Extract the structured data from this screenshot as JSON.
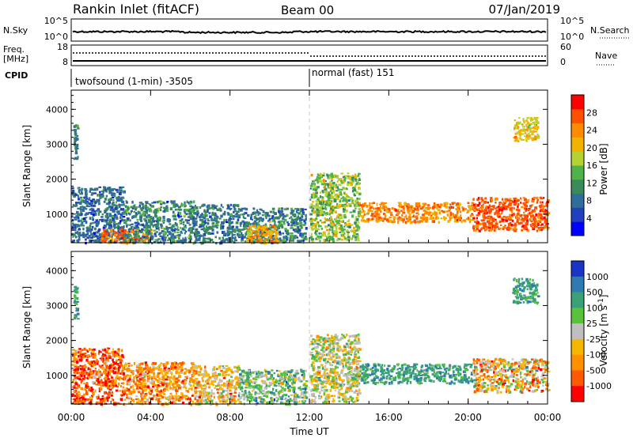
{
  "header": {
    "station": "Rankin Inlet (fitACF)",
    "beam": "Beam 00",
    "date": "07/Jan/2019"
  },
  "noise_panel": {
    "left_label": "N.Sky",
    "right_label": "N.Search",
    "left_ticks": [
      "10^5",
      "10^0"
    ],
    "right_ticks": [
      "10^5",
      "10^0"
    ]
  },
  "freq_panel": {
    "left_label_1": "Freq.",
    "left_label_2": "[MHz]",
    "left_ticks": [
      "18",
      "8"
    ],
    "right_label": "Nave",
    "right_ticks": [
      "60",
      "0"
    ]
  },
  "cpid_panel": {
    "label": "CPID",
    "mode_1": "twofsound (1-min) -3505",
    "mode_2": "normal (fast) 151",
    "switch_hour": 12
  },
  "colors": {
    "power": [
      "#0000ff",
      "#2040c0",
      "#2f6e9a",
      "#3a8a5a",
      "#4fb24a",
      "#b4d232",
      "#f0b400",
      "#ff8c00",
      "#ff5000",
      "#ff0000"
    ],
    "velocity": [
      "#1a34c8",
      "#2f7ab0",
      "#3aa078",
      "#59c23a",
      "#bfbfbf",
      "#f5b800",
      "#ff9000",
      "#ff5a00",
      "#ff0000"
    ]
  },
  "chart_data": [
    {
      "type": "heatmap",
      "name_of_quantity": "Power",
      "ylabel": "Slant Range [km]",
      "yticks": [
        1000,
        2000,
        3000,
        4000
      ],
      "ylim": [
        180,
        4550
      ],
      "xlim": [
        0,
        24
      ],
      "colorbar_label": "Power [dB]",
      "colorbar_ticks": [
        "4",
        "8",
        "12",
        "16",
        "20",
        "24",
        "28"
      ],
      "colorbar_range": [
        0,
        32
      ],
      "regions": [
        {
          "x": [
            0.0,
            2.6
          ],
          "y": [
            200,
            1800
          ],
          "mean": 8,
          "sd": 4
        },
        {
          "x": [
            1.5,
            4.0
          ],
          "y": [
            200,
            600
          ],
          "mean": 26,
          "sd": 4
        },
        {
          "x": [
            2.6,
            6.2
          ],
          "y": [
            200,
            1400
          ],
          "mean": 10,
          "sd": 5
        },
        {
          "x": [
            6.2,
            8.4
          ],
          "y": [
            200,
            1300
          ],
          "mean": 9,
          "sd": 4
        },
        {
          "x": [
            8.4,
            11.8
          ],
          "y": [
            200,
            1200
          ],
          "mean": 10,
          "sd": 5
        },
        {
          "x": [
            8.8,
            10.5
          ],
          "y": [
            200,
            700
          ],
          "mean": 22,
          "sd": 5
        },
        {
          "x": [
            12.0,
            14.5
          ],
          "y": [
            250,
            2200
          ],
          "mean": 16,
          "sd": 6
        },
        {
          "x": [
            14.5,
            20.2
          ],
          "y": [
            800,
            1350
          ],
          "mean": 24,
          "sd": 4
        },
        {
          "x": [
            20.2,
            24.0
          ],
          "y": [
            550,
            1500
          ],
          "mean": 27,
          "sd": 3
        },
        {
          "x": [
            22.2,
            23.5
          ],
          "y": [
            3100,
            3800
          ],
          "mean": 20,
          "sd": 4
        },
        {
          "x": [
            0.1,
            0.3
          ],
          "y": [
            2600,
            3600
          ],
          "mean": 10,
          "sd": 3
        }
      ]
    },
    {
      "type": "heatmap",
      "name_of_quantity": "Velocity",
      "ylabel": "Slant Range [km]",
      "yticks": [
        1000,
        2000,
        3000,
        4000
      ],
      "ylim": [
        180,
        4550
      ],
      "xlim": [
        0,
        24
      ],
      "colorbar_label": "Velocity [m s^-1]",
      "colorbar_ticks": [
        "1000",
        "500",
        "100",
        "25",
        "-25",
        "-100",
        "-500",
        "-1000"
      ],
      "regions": [
        {
          "x": [
            0.0,
            2.6
          ],
          "y": [
            200,
            1800
          ],
          "mean": 1,
          "sd": 2
        },
        {
          "x": [
            2.6,
            6.2
          ],
          "y": [
            200,
            1400
          ],
          "mean": 2,
          "sd": 2
        },
        {
          "x": [
            6.2,
            8.4
          ],
          "y": [
            200,
            1300
          ],
          "mean": 3,
          "sd": 2
        },
        {
          "x": [
            8.4,
            11.8
          ],
          "y": [
            200,
            1200
          ],
          "mean": 5,
          "sd": 2
        },
        {
          "x": [
            12.0,
            14.5
          ],
          "y": [
            250,
            2200
          ],
          "mean": 4,
          "sd": 2
        },
        {
          "x": [
            14.5,
            20.2
          ],
          "y": [
            800,
            1350
          ],
          "mean": 6,
          "sd": 1
        },
        {
          "x": [
            20.2,
            24.0
          ],
          "y": [
            550,
            1500
          ],
          "mean": 3,
          "sd": 3
        },
        {
          "x": [
            22.2,
            23.5
          ],
          "y": [
            3100,
            3800
          ],
          "mean": 6,
          "sd": 1
        },
        {
          "x": [
            0.1,
            0.3
          ],
          "y": [
            2600,
            3600
          ],
          "mean": 6,
          "sd": 1
        }
      ]
    }
  ],
  "xaxis": {
    "ticks": [
      "00:00",
      "04:00",
      "08:00",
      "12:00",
      "16:00",
      "20:00",
      "00:00"
    ],
    "label": "Time UT"
  }
}
